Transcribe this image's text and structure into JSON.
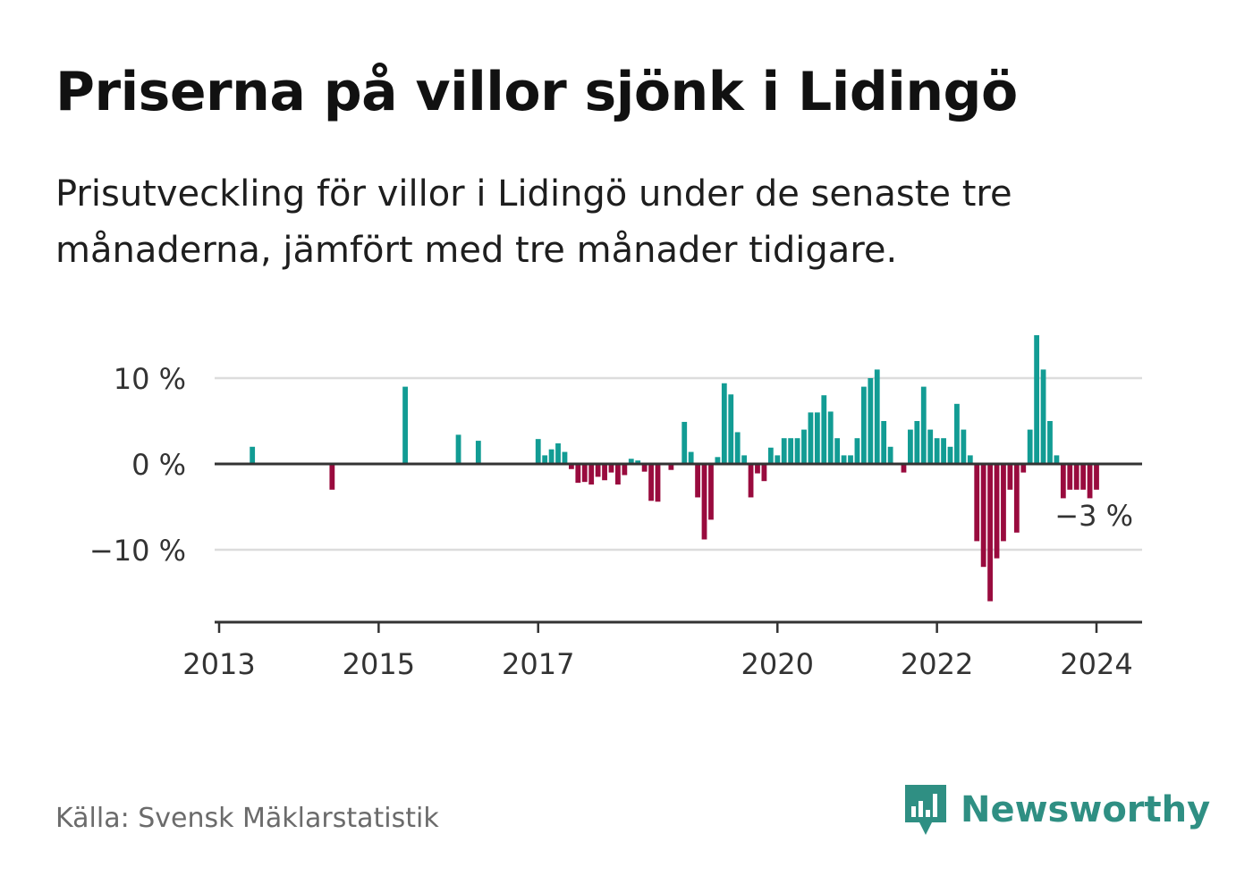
{
  "title": "Priserna på villor sjönk i Lidingö",
  "subtitle": "Prisutveckling för villor i Lidingö under de senaste tre månaderna, jämfört med tre månader tidigare.",
  "source": "Källa: Svensk Mäklarstatistik",
  "brand": {
    "name": "Newsworthy"
  },
  "colors": {
    "positive": "#129c94",
    "negative": "#990b3e",
    "grid": "#dcdcdc",
    "axis": "#333333"
  },
  "chart_data": {
    "type": "bar",
    "title": "Priserna på villor sjönk i Lidingö",
    "ylabel": "",
    "ylim": [
      -18,
      15.5
    ],
    "yticks": [
      {
        "value": 10,
        "label": "10 %"
      },
      {
        "value": 0,
        "label": "0 %"
      },
      {
        "value": -10,
        "label": "−10 %"
      }
    ],
    "xlim": [
      "2013-01",
      "2024-07"
    ],
    "xticks": [
      {
        "x": "2013-01",
        "label": "2013"
      },
      {
        "x": "2015-01",
        "label": "2015"
      },
      {
        "x": "2017-01",
        "label": "2017"
      },
      {
        "x": "2020-01",
        "label": "2020"
      },
      {
        "x": "2022-01",
        "label": "2022"
      },
      {
        "x": "2024-01",
        "label": "2024"
      }
    ],
    "annotation": {
      "x": "2024-01",
      "value": -3,
      "label": "−3 %"
    },
    "series": [
      {
        "name": "Prisutveckling",
        "points": [
          [
            "2013-06",
            2.0
          ],
          [
            "2014-06",
            -3.0
          ],
          [
            "2015-05",
            9.0
          ],
          [
            "2016-01",
            3.4
          ],
          [
            "2016-04",
            2.7
          ],
          [
            "2017-01",
            2.9
          ],
          [
            "2017-02",
            1.0
          ],
          [
            "2017-03",
            1.7
          ],
          [
            "2017-04",
            2.4
          ],
          [
            "2017-05",
            1.4
          ],
          [
            "2017-06",
            -0.6
          ],
          [
            "2017-07",
            -2.2
          ],
          [
            "2017-08",
            -2.1
          ],
          [
            "2017-09",
            -2.4
          ],
          [
            "2017-10",
            -1.5
          ],
          [
            "2017-11",
            -1.9
          ],
          [
            "2017-12",
            -1.0
          ],
          [
            "2018-01",
            -2.4
          ],
          [
            "2018-02",
            -1.3
          ],
          [
            "2018-03",
            0.6
          ],
          [
            "2018-04",
            0.4
          ],
          [
            "2018-05",
            -0.9
          ],
          [
            "2018-06",
            -4.3
          ],
          [
            "2018-07",
            -4.4
          ],
          [
            "2018-09",
            -0.7
          ],
          [
            "2018-11",
            4.9
          ],
          [
            "2018-12",
            1.4
          ],
          [
            "2019-01",
            -3.9
          ],
          [
            "2019-02",
            -8.8
          ],
          [
            "2019-03",
            -6.5
          ],
          [
            "2019-04",
            0.8
          ],
          [
            "2019-05",
            9.4
          ],
          [
            "2019-06",
            8.1
          ],
          [
            "2019-07",
            3.7
          ],
          [
            "2019-08",
            1.0
          ],
          [
            "2019-09",
            -3.9
          ],
          [
            "2019-10",
            -1.1
          ],
          [
            "2019-11",
            -2.0
          ],
          [
            "2019-12",
            1.9
          ],
          [
            "2020-01",
            1.0
          ],
          [
            "2020-02",
            3.0
          ],
          [
            "2020-03",
            3.0
          ],
          [
            "2020-04",
            3.0
          ],
          [
            "2020-05",
            4.0
          ],
          [
            "2020-06",
            6.0
          ],
          [
            "2020-07",
            6.0
          ],
          [
            "2020-08",
            8.0
          ],
          [
            "2020-09",
            6.1
          ],
          [
            "2020-10",
            3.0
          ],
          [
            "2020-11",
            1.0
          ],
          [
            "2020-12",
            1.0
          ],
          [
            "2021-01",
            3.0
          ],
          [
            "2021-02",
            9.0
          ],
          [
            "2021-03",
            10.0
          ],
          [
            "2021-04",
            11.0
          ],
          [
            "2021-05",
            5.0
          ],
          [
            "2021-06",
            2.0
          ],
          [
            "2021-08",
            -1.0
          ],
          [
            "2021-09",
            4.0
          ],
          [
            "2021-10",
            5.0
          ],
          [
            "2021-11",
            9.0
          ],
          [
            "2021-12",
            4.0
          ],
          [
            "2022-01",
            3.0
          ],
          [
            "2022-02",
            3.0
          ],
          [
            "2022-03",
            2.0
          ],
          [
            "2022-04",
            7.0
          ],
          [
            "2022-05",
            4.0
          ],
          [
            "2022-06",
            1.0
          ],
          [
            "2022-07",
            -9.0
          ],
          [
            "2022-08",
            -12.0
          ],
          [
            "2022-09",
            -16.0
          ],
          [
            "2022-10",
            -11.0
          ],
          [
            "2022-11",
            -9.0
          ],
          [
            "2022-12",
            -3.0
          ],
          [
            "2023-01",
            -8.0
          ],
          [
            "2023-02",
            -1.0
          ],
          [
            "2023-03",
            4.0
          ],
          [
            "2023-04",
            15.0
          ],
          [
            "2023-05",
            11.0
          ],
          [
            "2023-06",
            5.0
          ],
          [
            "2023-07",
            1.0
          ],
          [
            "2023-08",
            -4.0
          ],
          [
            "2023-09",
            -3.0
          ],
          [
            "2023-10",
            -3.0
          ],
          [
            "2023-11",
            -3.0
          ],
          [
            "2023-12",
            -4.0
          ],
          [
            "2024-01",
            -3.0
          ]
        ]
      }
    ]
  }
}
